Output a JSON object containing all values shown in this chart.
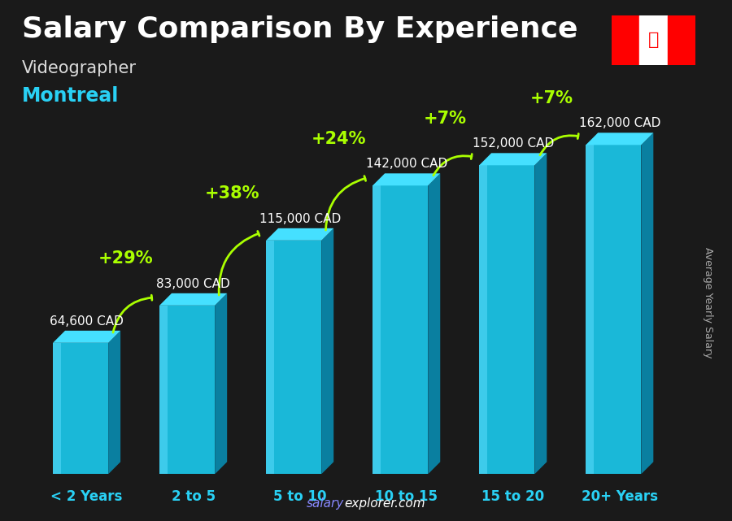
{
  "title": "Salary Comparison By Experience",
  "subtitle1": "Videographer",
  "subtitle2": "Montreal",
  "ylabel": "Average Yearly Salary",
  "watermark": "salaryexplorer.com",
  "categories": [
    "< 2 Years",
    "2 to 5",
    "5 to 10",
    "10 to 15",
    "15 to 20",
    "20+ Years"
  ],
  "values": [
    64600,
    83000,
    115000,
    142000,
    152000,
    162000
  ],
  "salary_labels": [
    "64,600 CAD",
    "83,000 CAD",
    "115,000 CAD",
    "142,000 CAD",
    "152,000 CAD",
    "162,000 CAD"
  ],
  "pct_labels": [
    "+29%",
    "+38%",
    "+24%",
    "+7%",
    "+7%"
  ],
  "bar_color_face": "#1ab8d8",
  "bar_color_light": "#55d8f8",
  "bar_color_top": "#45e0ff",
  "bar_color_side": "#0a7fa0",
  "bg_color": "#1a1a1a",
  "title_color": "#ffffff",
  "subtitle1_color": "#dddddd",
  "subtitle2_color": "#29d1f5",
  "label_color": "#ffffff",
  "pct_color": "#aaff00",
  "xticklabel_color": "#29d1f5",
  "watermark_salary_color": "#aaaaff",
  "watermark_explorer_color": "#ffffff",
  "title_fontsize": 26,
  "subtitle1_fontsize": 15,
  "subtitle2_fontsize": 17,
  "ylabel_fontsize": 9,
  "label_fontsize": 11,
  "pct_fontsize": 15,
  "xticklabel_fontsize": 12,
  "ylim": [
    0,
    200000
  ]
}
